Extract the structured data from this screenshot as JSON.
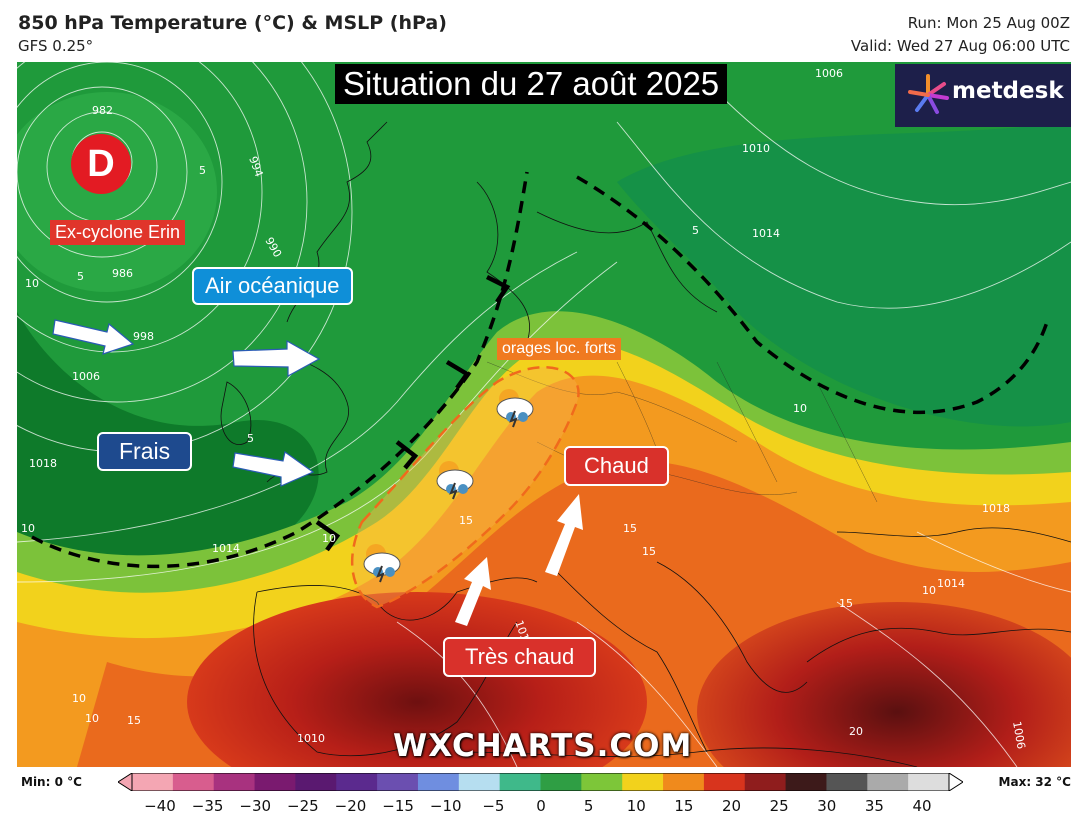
{
  "header": {
    "title": "850 hPa Temperature (°C) & MSLP (hPa)",
    "model": "GFS 0.25°",
    "run": "Run: Mon 25 Aug 00Z",
    "valid": "Valid: Wed 27 Aug 06:00 UTC"
  },
  "overlay": {
    "situation_title": "Situation du 27 août 2025",
    "logo_text": "metdesk",
    "low_symbol": "D",
    "labels": {
      "erin": "Ex-cyclone Erin",
      "oceanic": "Air océanique",
      "frais": "Frais",
      "orages": "orages loc. forts",
      "chaud": "Chaud",
      "tres_chaud": "Très chaud"
    },
    "watermark": "WXCHARTS.COM",
    "icons": [
      "storm-cloud-icon",
      "storm-cloud-icon",
      "storm-cloud-icon"
    ]
  },
  "isobar_labels": [
    "982",
    "994",
    "990",
    "986",
    "998",
    "1006",
    "1018",
    "1010",
    "1014",
    "1006",
    "1010",
    "1018",
    "1014",
    "1010",
    "1006",
    "1010"
  ],
  "temp_labels": [
    "5",
    "5",
    "5",
    "5",
    "10",
    "10",
    "10",
    "10",
    "10",
    "10",
    "10",
    "15",
    "15",
    "15",
    "15",
    "15",
    "20"
  ],
  "legend": {
    "min_label": "Min: 0 °C",
    "max_label": "Max: 32 °C",
    "ticks": [
      "−40",
      "−35",
      "−30",
      "−25",
      "−20",
      "−15",
      "−10",
      "−5",
      "0",
      "5",
      "10",
      "15",
      "20",
      "25",
      "30",
      "35",
      "40"
    ],
    "colors": [
      "#f4a6b3",
      "#d85d8e",
      "#a8327f",
      "#7a1a6f",
      "#5a1970",
      "#5b2a8e",
      "#6b4fb0",
      "#6f8ee0",
      "#b6def0",
      "#3fb98a",
      "#2f9e44",
      "#7dc639",
      "#f2d21c",
      "#f08a1c",
      "#d8341d",
      "#8f1d1d",
      "#3d1a1a",
      "#555",
      "#aaa",
      "#ddd"
    ]
  }
}
